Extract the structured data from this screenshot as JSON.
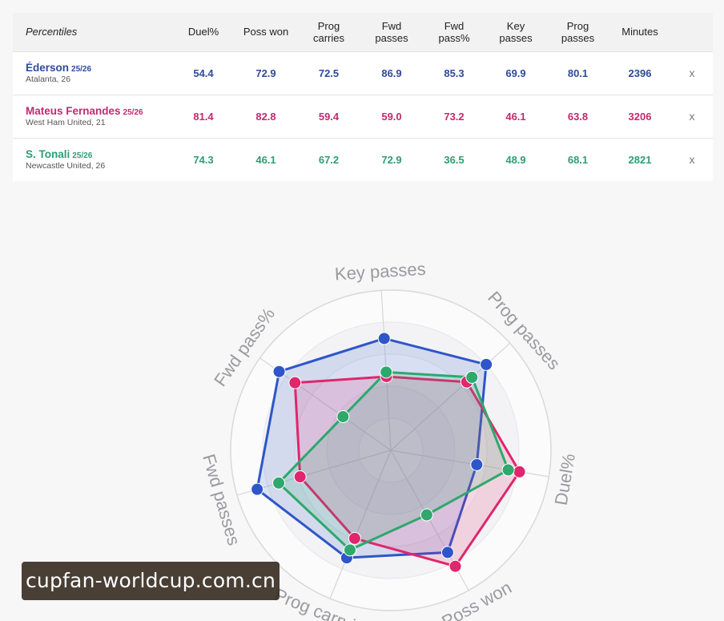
{
  "table": {
    "corner_label": "Percentiles",
    "columns": [
      "Duel%",
      "Poss won",
      "Prog\ncarries",
      "Fwd\npasses",
      "Fwd\npass%",
      "Key\npasses",
      "Prog\npasses",
      "Minutes"
    ],
    "remove_label": "x",
    "players": [
      {
        "name": "Éderson",
        "season": "25/26",
        "club": "Atalanta, 26",
        "color": "#2f4a9c",
        "values": [
          "54.4",
          "72.9",
          "72.5",
          "86.9",
          "85.3",
          "69.9",
          "80.1",
          "2396"
        ]
      },
      {
        "name": "Mateus Fernandes",
        "season": "25/26",
        "club": "West Ham United, 21",
        "color": "#c2296f",
        "values": [
          "81.4",
          "82.8",
          "59.4",
          "59.0",
          "73.2",
          "46.1",
          "63.8",
          "3206"
        ]
      },
      {
        "name": "S. Tonali",
        "season": "25/26",
        "club": "Newcastle United, 26",
        "color": "#2e9e72",
        "values": [
          "74.3",
          "46.1",
          "67.2",
          "72.9",
          "36.5",
          "48.9",
          "68.1",
          "2821"
        ]
      }
    ]
  },
  "chart_data": {
    "type": "radar",
    "axes": [
      "Key passes",
      "Prog passes",
      "Duel%",
      "Poss won",
      "Prog carrying",
      "Fwd passes",
      "Fwd pass%"
    ],
    "range": [
      0,
      100
    ],
    "series": [
      {
        "name": "Éderson",
        "color": "#2e55c9",
        "values": [
          69.9,
          80.1,
          54.4,
          72.9,
          72.5,
          86.9,
          85.3
        ]
      },
      {
        "name": "Mateus Fernandes",
        "color": "#e0266d",
        "values": [
          46.1,
          63.8,
          81.4,
          82.8,
          59.4,
          59.0,
          73.2
        ]
      },
      {
        "name": "S. Tonali",
        "color": "#2ea86c",
        "values": [
          48.9,
          68.1,
          74.3,
          46.1,
          67.2,
          72.9,
          36.5
        ]
      }
    ]
  },
  "watermark": "cupfan-worldcup.com.cn"
}
